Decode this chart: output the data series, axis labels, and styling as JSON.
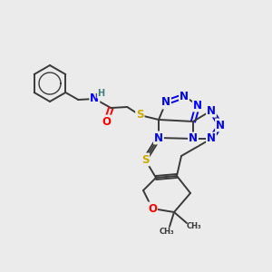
{
  "background_color": "#ebebeb",
  "bond_color": "#3a3a3a",
  "atom_colors": {
    "N": "#0000ff",
    "O": "#ff0000",
    "S": "#ccaa00",
    "C": "#3a3a3a",
    "H": "#408080"
  },
  "font_size_atom": 8.5,
  "font_size_small": 7.0,
  "lw": 1.4,
  "sep": 2.2
}
